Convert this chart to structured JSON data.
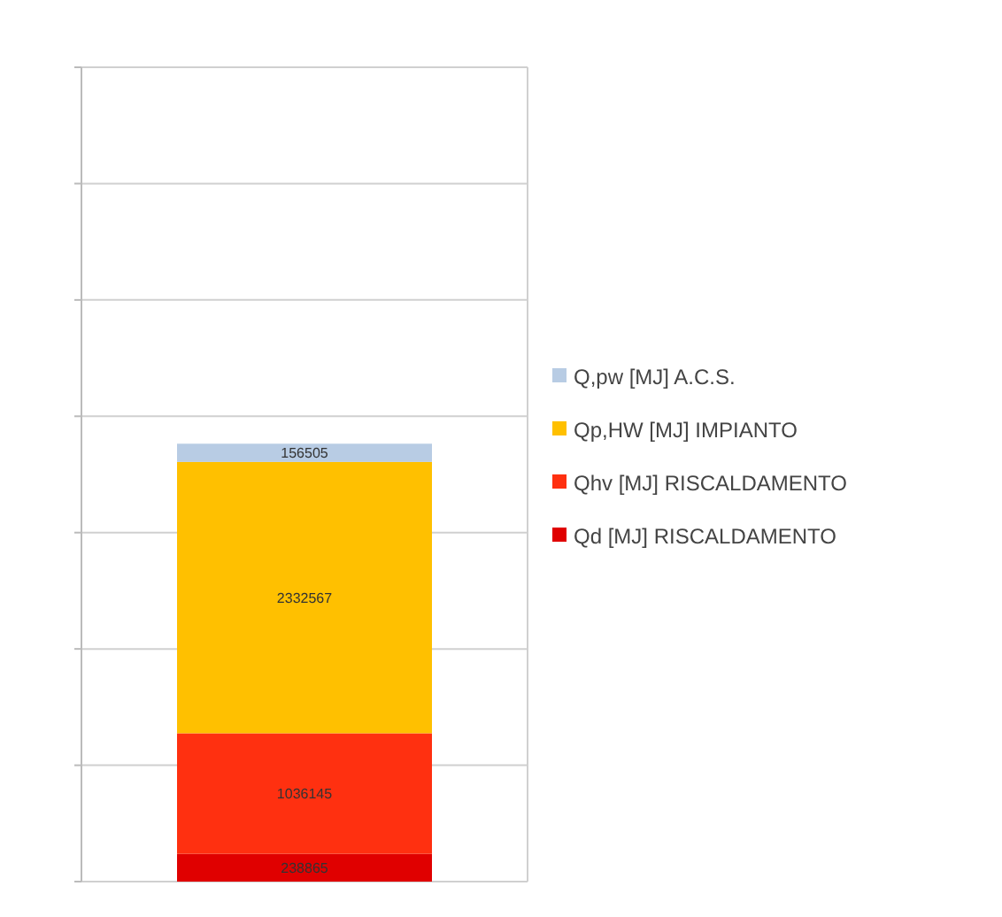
{
  "chart_data": {
    "type": "bar",
    "stacked": true,
    "categories": [
      null
    ],
    "series": [
      {
        "name": "Qd [MJ] RISCALDAMENTO",
        "color": "#e00000",
        "values": [
          238865
        ]
      },
      {
        "name": "Qhv [MJ] RISCALDAMENTO",
        "color": "#ff3010",
        "values": [
          1036145
        ]
      },
      {
        "name": "Qp,HW [MJ] IMPIANTO",
        "color": "#ffc000",
        "values": [
          2332567
        ]
      },
      {
        "name": "Q,pw [MJ] A.C.S.",
        "color": "#b8cce4",
        "values": [
          156505
        ]
      }
    ],
    "ylim": [
      0,
      7000000
    ],
    "yticks": [
      {
        "value": 0,
        "label": null
      },
      {
        "value": 1000000,
        "label": null
      },
      {
        "value": 2000000,
        "label": null
      },
      {
        "value": 3000000,
        "label": null
      },
      {
        "value": 4000000,
        "label": null
      },
      {
        "value": 5000000,
        "label": null
      },
      {
        "value": 6000000,
        "label": null
      },
      {
        "value": 7000000,
        "label": null
      }
    ],
    "grid": "y",
    "legend": "right",
    "data_labels": true
  }
}
